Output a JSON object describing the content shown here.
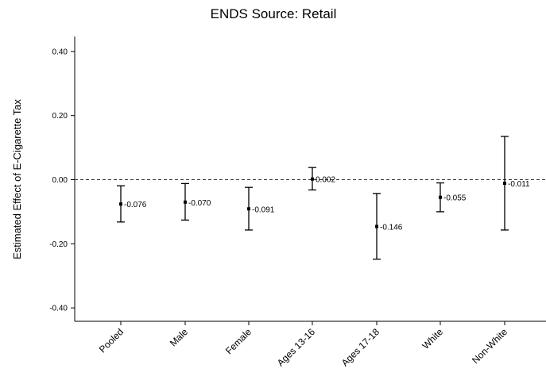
{
  "chart_data": {
    "type": "errorbar",
    "title": "ENDS Source: Retail",
    "xlabel": "",
    "ylabel": "Estimated Effect of E-Cigarette Tax",
    "ylim": [
      -0.45,
      0.45
    ],
    "yticks": [
      "0.40",
      "0.20",
      "0.00",
      "-0.20",
      "-0.40"
    ],
    "ytick_values": [
      0.4,
      0.2,
      0.0,
      -0.2,
      -0.4
    ],
    "reference_line": 0.0,
    "categories": [
      "Pooled",
      "Male",
      "Female",
      "Ages 13-16",
      "Ages 17-18",
      "White",
      "Non-White"
    ],
    "estimates": [
      -0.076,
      -0.07,
      -0.091,
      0.002,
      -0.146,
      -0.055,
      -0.011
    ],
    "labels": [
      "-0.076",
      "-0.070",
      "-0.091",
      "0.002",
      "-0.146",
      "-0.055",
      "-0.011"
    ],
    "ci_lower": [
      -0.132,
      -0.126,
      -0.157,
      -0.032,
      -0.248,
      -0.1,
      -0.157
    ],
    "ci_upper": [
      -0.019,
      -0.012,
      -0.024,
      0.038,
      -0.043,
      -0.01,
      0.135
    ],
    "grid": false,
    "legend": "none"
  }
}
